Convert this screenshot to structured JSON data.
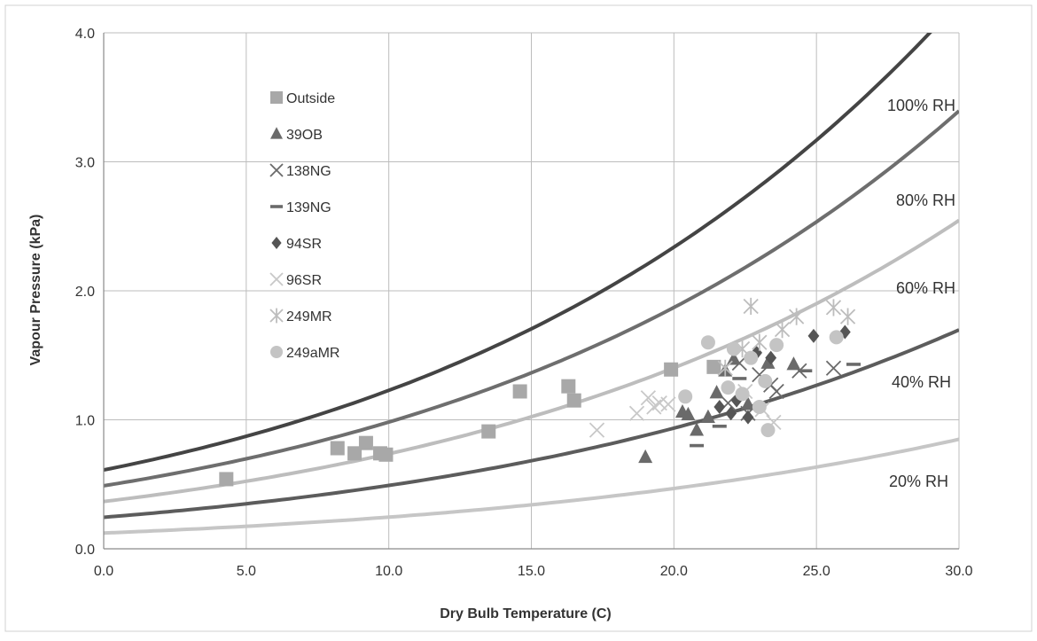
{
  "chart_data": {
    "type": "scatter",
    "title": "",
    "xlabel": "Dry Bulb Temperature (C)",
    "ylabel": "Vapour Pressure (kPa)",
    "xlim": [
      0,
      30
    ],
    "ylim": [
      0,
      4
    ],
    "x_ticks": [
      "0.0",
      "5.0",
      "10.0",
      "15.0",
      "20.0",
      "25.0",
      "30.0"
    ],
    "y_ticks": [
      "0.0",
      "1.0",
      "2.0",
      "3.0",
      "4.0"
    ],
    "grid": true,
    "legend_position": "top-left",
    "rh_curves": [
      {
        "label": "100% RH",
        "rh": 1.0,
        "color": "#444444"
      },
      {
        "label": "80% RH",
        "rh": 0.8,
        "color": "#6e6e6e"
      },
      {
        "label": "60% RH",
        "rh": 0.6,
        "color": "#bdbdbd"
      },
      {
        "label": "40% RH",
        "rh": 0.4,
        "color": "#5c5c5c"
      },
      {
        "label": "20% RH",
        "rh": 0.2,
        "color": "#c6c6c6"
      }
    ],
    "series": [
      {
        "name": "Outside",
        "marker": "square",
        "color": "#a8a8a8",
        "points": [
          [
            4.3,
            0.54
          ],
          [
            8.2,
            0.78
          ],
          [
            8.8,
            0.74
          ],
          [
            9.2,
            0.82
          ],
          [
            9.7,
            0.74
          ],
          [
            9.9,
            0.73
          ],
          [
            13.5,
            0.91
          ],
          [
            14.6,
            1.22
          ],
          [
            16.3,
            1.26
          ],
          [
            16.5,
            1.15
          ],
          [
            19.9,
            1.39
          ],
          [
            21.4,
            1.41
          ]
        ]
      },
      {
        "name": "39OB",
        "marker": "triangle",
        "color": "#6a6a6a",
        "points": [
          [
            19.0,
            0.71
          ],
          [
            20.3,
            1.06
          ],
          [
            20.5,
            1.04
          ],
          [
            20.8,
            0.92
          ],
          [
            21.2,
            1.02
          ],
          [
            21.5,
            1.21
          ],
          [
            21.8,
            1.38
          ],
          [
            22.1,
            1.47
          ],
          [
            22.6,
            1.12
          ],
          [
            23.3,
            1.44
          ],
          [
            24.2,
            1.43
          ]
        ]
      },
      {
        "name": "138NG",
        "marker": "x",
        "color": "#6a6a6a",
        "points": [
          [
            21.9,
            1.13
          ],
          [
            22.3,
            1.44
          ],
          [
            22.6,
            1.05
          ],
          [
            23.0,
            1.35
          ],
          [
            23.4,
            1.27
          ],
          [
            23.6,
            1.22
          ],
          [
            24.4,
            1.38
          ],
          [
            25.6,
            1.4
          ]
        ]
      },
      {
        "name": "139NG",
        "marker": "dash",
        "color": "#6a6a6a",
        "points": [
          [
            20.8,
            0.8
          ],
          [
            21.6,
            0.95
          ],
          [
            22.3,
            1.32
          ],
          [
            24.6,
            1.38
          ],
          [
            26.3,
            1.43
          ]
        ]
      },
      {
        "name": "94SR",
        "marker": "diamond",
        "color": "#555555",
        "points": [
          [
            21.6,
            1.1
          ],
          [
            22.0,
            1.05
          ],
          [
            22.2,
            1.15
          ],
          [
            22.6,
            1.02
          ],
          [
            22.9,
            1.52
          ],
          [
            23.4,
            1.48
          ],
          [
            24.9,
            1.65
          ],
          [
            26.0,
            1.68
          ]
        ]
      },
      {
        "name": "96SR",
        "marker": "x",
        "color": "#c8c8c8",
        "points": [
          [
            17.3,
            0.92
          ],
          [
            18.7,
            1.05
          ],
          [
            19.1,
            1.17
          ],
          [
            19.3,
            1.1
          ],
          [
            19.5,
            1.13
          ],
          [
            19.8,
            1.12
          ],
          [
            22.5,
            1.22
          ],
          [
            23.1,
            1.08
          ],
          [
            23.5,
            0.98
          ]
        ]
      },
      {
        "name": "249MR",
        "marker": "asterisk",
        "color": "#bdbdbd",
        "points": [
          [
            21.8,
            1.4
          ],
          [
            22.4,
            1.55
          ],
          [
            22.7,
            1.88
          ],
          [
            23.0,
            1.6
          ],
          [
            23.8,
            1.7
          ],
          [
            24.3,
            1.8
          ],
          [
            25.6,
            1.87
          ],
          [
            26.1,
            1.8
          ]
        ]
      },
      {
        "name": "249aMR",
        "marker": "circle",
        "color": "#c4c4c4",
        "points": [
          [
            20.4,
            1.18
          ],
          [
            21.2,
            1.6
          ],
          [
            21.9,
            1.25
          ],
          [
            22.1,
            1.55
          ],
          [
            22.4,
            1.2
          ],
          [
            22.7,
            1.48
          ],
          [
            23.0,
            1.1
          ],
          [
            23.2,
            1.3
          ],
          [
            23.3,
            0.92
          ],
          [
            23.6,
            1.58
          ],
          [
            25.7,
            1.64
          ]
        ]
      }
    ]
  }
}
